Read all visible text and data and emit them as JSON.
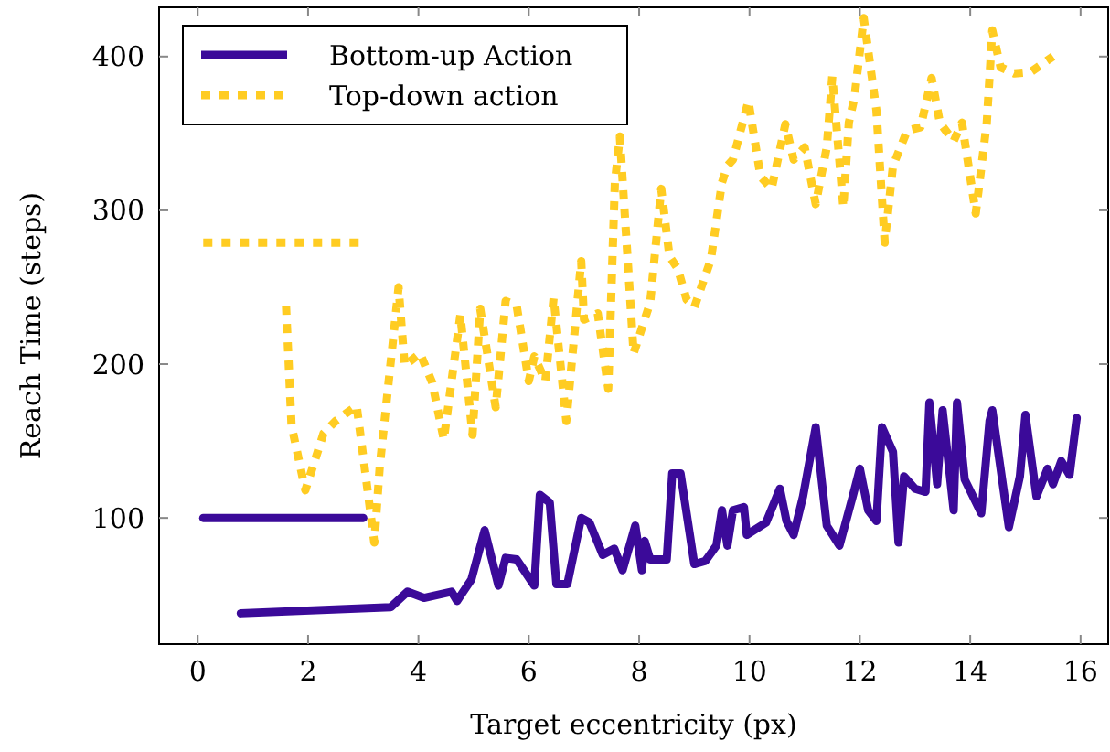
{
  "chart_data": {
    "type": "line",
    "xlabel": "Target eccentricity (px)",
    "ylabel": "Reach Time (steps)",
    "xlim": [
      -0.7,
      16.5
    ],
    "ylim": [
      18,
      432
    ],
    "xticks": [
      0,
      2,
      4,
      6,
      8,
      10,
      12,
      14,
      16
    ],
    "yticks": [
      100,
      200,
      300,
      400
    ],
    "grid": false,
    "legend": "top left",
    "series": [
      {
        "name": "Bottom-up Action",
        "color": "#3b0a99",
        "line_style": "solid",
        "x": [
          0.78,
          3.5,
          3.8,
          4.1,
          4.6,
          4.7,
          4.96,
          5.2,
          5.45,
          5.58,
          5.78,
          6.1,
          6.2,
          6.38,
          6.5,
          6.7,
          6.95,
          7.1,
          7.34,
          7.55,
          7.7,
          7.93,
          8.05,
          8.1,
          8.2,
          8.5,
          8.6,
          8.75,
          9.0,
          9.2,
          9.4,
          9.5,
          9.6,
          9.7,
          9.9,
          9.95,
          10.3,
          10.55,
          10.67,
          10.8,
          10.97,
          11.2,
          11.4,
          11.63,
          11.87,
          12.0,
          12.15,
          12.3,
          12.4,
          12.6,
          12.7,
          12.8,
          13.0,
          13.19,
          13.26,
          13.4,
          13.5,
          13.7,
          13.76,
          13.9,
          14.2,
          14.35,
          14.4,
          14.7,
          14.9,
          15.0,
          15.2,
          15.4,
          15.5,
          15.65,
          15.8,
          15.93
        ],
        "values": [
          38,
          42,
          52,
          48,
          52,
          46,
          60,
          92,
          56,
          74,
          73,
          56,
          115,
          110,
          57,
          57,
          100,
          97,
          76,
          80,
          66,
          95,
          66,
          85,
          73,
          73,
          129,
          129,
          70,
          72,
          82,
          105,
          82,
          105,
          107,
          89,
          97,
          119,
          98,
          89,
          114,
          159,
          95,
          82,
          114,
          132,
          105,
          98,
          159,
          143,
          84,
          127,
          119,
          117,
          175,
          122,
          170,
          105,
          175,
          125,
          103,
          163,
          170,
          94,
          127,
          167,
          114,
          132,
          122,
          137,
          128,
          165
        ]
      },
      {
        "name": "Top-down action",
        "color": "#ffcc22",
        "line_style": "dotted",
        "x": [
          1.6,
          1.7,
          1.95,
          2.28,
          2.5,
          2.88,
          3.2,
          3.3,
          3.64,
          3.75,
          4.03,
          4.25,
          4.46,
          4.76,
          4.98,
          5.12,
          5.4,
          5.58,
          5.78,
          6.0,
          6.1,
          6.3,
          6.45,
          6.68,
          6.95,
          7.0,
          7.25,
          7.44,
          7.56,
          7.65,
          7.9,
          8.2,
          8.4,
          8.55,
          8.7,
          8.86,
          9.0,
          9.3,
          9.5,
          9.6,
          9.7,
          9.98,
          10.2,
          10.4,
          10.65,
          10.8,
          11.0,
          11.2,
          11.4,
          11.5,
          11.7,
          11.8,
          11.9,
          12.07,
          12.3,
          12.45,
          12.6,
          12.86,
          13.1,
          13.3,
          13.45,
          13.7,
          13.85,
          14.1,
          14.3,
          14.4,
          14.55,
          14.8,
          15.1,
          15.5
        ],
        "values": [
          238,
          160,
          118,
          155,
          163,
          173,
          84,
          134,
          250,
          199,
          207,
          188,
          151,
          232,
          154,
          236,
          172,
          241,
          238,
          189,
          205,
          189,
          243,
          163,
          267,
          229,
          233,
          184,
          318,
          348,
          207,
          240,
          314,
          270,
          262,
          242,
          237,
          268,
          318,
          329,
          333,
          371,
          322,
          314,
          356,
          333,
          341,
          304,
          341,
          387,
          302,
          357,
          373,
          425,
          365,
          279,
          329,
          352,
          354,
          386,
          357,
          345,
          357,
          298,
          357,
          417,
          393,
          389,
          390,
          400
        ]
      },
      {
        "color": "#3b0a99",
        "line_style": "solid",
        "x": [
          0.1,
          3.0
        ],
        "values": [
          100,
          100
        ]
      },
      {
        "color": "#ffcc22",
        "line_style": "dotted",
        "x": [
          0.1,
          3.0
        ],
        "values": [
          279,
          279
        ]
      }
    ]
  }
}
